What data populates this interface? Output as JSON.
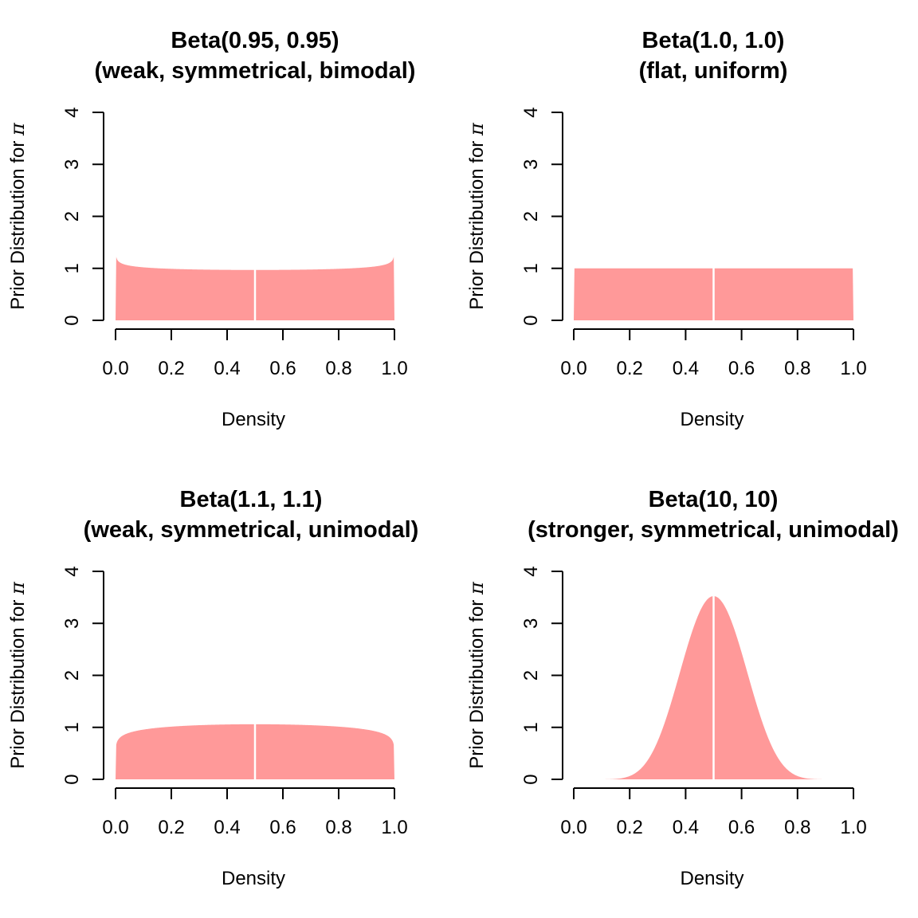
{
  "chart_data": [
    {
      "type": "area",
      "title_line1": "Beta(0.95, 0.95)",
      "title_line2": "(weak, symmetrical, bimodal)",
      "alpha": 0.95,
      "beta": 0.95,
      "xlabel": "Density",
      "ylabel_prefix": "Prior Distribution for ",
      "ylabel_symbol": "π",
      "xlim": [
        0,
        1
      ],
      "ylim": [
        0,
        4
      ],
      "x_ticks": [
        "0.0",
        "0.2",
        "0.4",
        "0.6",
        "0.8",
        "1.0"
      ],
      "y_ticks": [
        "0",
        "1",
        "2",
        "3",
        "4"
      ],
      "vline_x": 0.5,
      "fill_color": "#FF9999"
    },
    {
      "type": "area",
      "title_line1": "Beta(1.0, 1.0)",
      "title_line2": "(flat, uniform)",
      "alpha": 1.0,
      "beta": 1.0,
      "xlabel": "Density",
      "ylabel_prefix": "Prior Distribution for ",
      "ylabel_symbol": "π",
      "xlim": [
        0,
        1
      ],
      "ylim": [
        0,
        4
      ],
      "x_ticks": [
        "0.0",
        "0.2",
        "0.4",
        "0.6",
        "0.8",
        "1.0"
      ],
      "y_ticks": [
        "0",
        "1",
        "2",
        "3",
        "4"
      ],
      "vline_x": 0.5,
      "fill_color": "#FF9999"
    },
    {
      "type": "area",
      "title_line1": "Beta(1.1, 1.1)",
      "title_line2": "(weak, symmetrical, unimodal)",
      "alpha": 1.1,
      "beta": 1.1,
      "xlabel": "Density",
      "ylabel_prefix": "Prior Distribution for ",
      "ylabel_symbol": "π",
      "xlim": [
        0,
        1
      ],
      "ylim": [
        0,
        4
      ],
      "x_ticks": [
        "0.0",
        "0.2",
        "0.4",
        "0.6",
        "0.8",
        "1.0"
      ],
      "y_ticks": [
        "0",
        "1",
        "2",
        "3",
        "4"
      ],
      "vline_x": 0.5,
      "fill_color": "#FF9999"
    },
    {
      "type": "area",
      "title_line1": "Beta(10, 10)",
      "title_line2": "(stronger, symmetrical, unimodal)",
      "alpha": 10,
      "beta": 10,
      "xlabel": "Density",
      "ylabel_prefix": "Prior Distribution for ",
      "ylabel_symbol": "π",
      "xlim": [
        0,
        1
      ],
      "ylim": [
        0,
        4
      ],
      "x_ticks": [
        "0.0",
        "0.2",
        "0.4",
        "0.6",
        "0.8",
        "1.0"
      ],
      "y_ticks": [
        "0",
        "1",
        "2",
        "3",
        "4"
      ],
      "vline_x": 0.5,
      "fill_color": "#FF9999"
    }
  ]
}
